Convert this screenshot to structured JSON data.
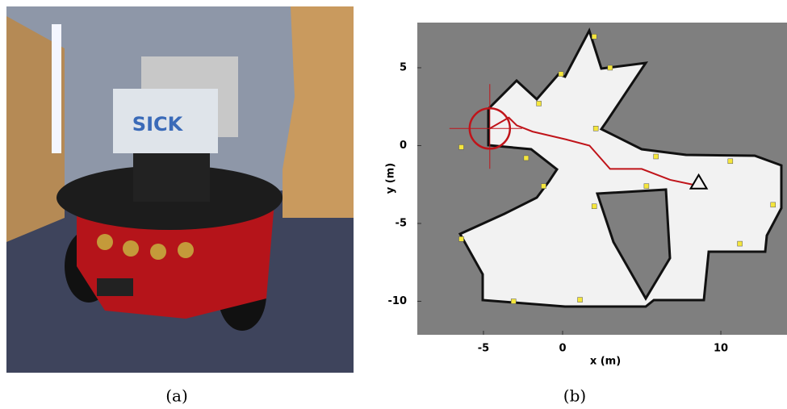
{
  "photo_text": "SICK",
  "captions": [
    "(a)",
    "(b)"
  ],
  "map": {
    "xlabel": "x (m)",
    "ylabel": "y (m)",
    "xlim": [
      -9.18,
      14.18
    ],
    "ylim": [
      -12.15,
      7.9
    ],
    "xticks": [
      -5,
      0,
      10
    ],
    "yticks": [
      5,
      0,
      -5,
      -10
    ],
    "landmarks": {
      "color": "#f5e63c",
      "x": [
        2.0,
        -0.1,
        3.0,
        -1.5,
        2.1,
        -6.4,
        -2.3,
        5.9,
        10.6,
        -1.2,
        5.3,
        2.0,
        13.3,
        -6.4,
        11.2,
        -3.1,
        1.1
      ],
      "y": [
        7.0,
        4.6,
        5.0,
        2.7,
        1.1,
        -0.1,
        -0.8,
        -0.7,
        -1.0,
        -2.6,
        -2.6,
        -3.9,
        -3.8,
        -6.0,
        -6.3,
        -10.0,
        -9.9
      ]
    },
    "path": {
      "color": "#c0141a",
      "x": [
        -4.6,
        -3.4,
        -2.9,
        -1.9,
        0.2,
        1.7,
        3.0,
        5.0,
        6.8,
        8.2
      ],
      "y": [
        1.1,
        1.8,
        1.3,
        0.9,
        0.4,
        0.0,
        -1.5,
        -1.5,
        -2.2,
        -2.5
      ]
    },
    "goal": {
      "x": 8.6,
      "y": -2.4
    }
  }
}
